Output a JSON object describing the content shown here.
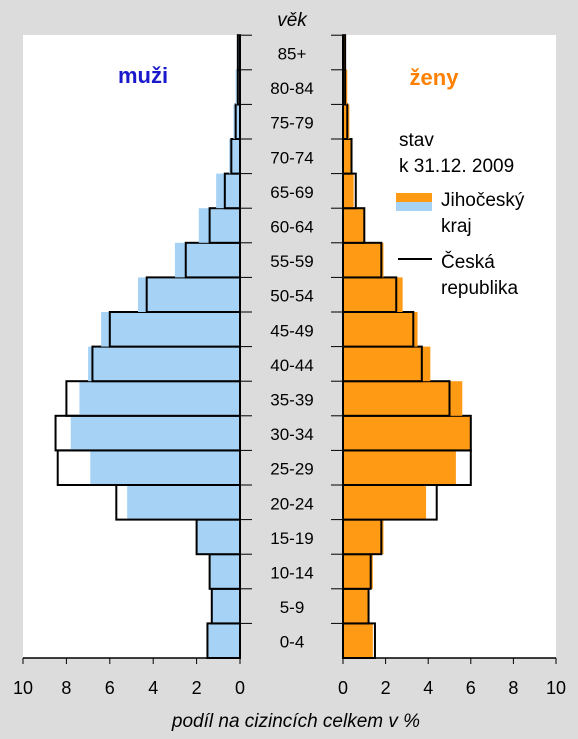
{
  "chart_data": {
    "type": "bar",
    "subtype": "population-pyramid",
    "categories_label": "věk",
    "categories": [
      "0-4",
      "5-9",
      "10-14",
      "15-19",
      "20-24",
      "25-29",
      "30-34",
      "35-39",
      "40-44",
      "45-49",
      "50-54",
      "55-59",
      "60-64",
      "65-69",
      "70-74",
      "75-79",
      "80-84",
      "85+"
    ],
    "left_panel_label": "muži",
    "right_panel_label": "ženy",
    "xlabel": "podíl na cizincích celkem v %",
    "xlim": [
      0,
      10
    ],
    "x_ticks": [
      "10",
      "8",
      "6",
      "4",
      "2",
      "0",
      "0",
      "2",
      "4",
      "6",
      "8",
      "10"
    ],
    "legend": {
      "title_line1": "stav",
      "title_line2": "k 31.12. 2009",
      "region_line1": "Jihočeský",
      "region_line2": "kraj",
      "country_line1": "Česká",
      "country_line2": "republika"
    },
    "series": [
      {
        "name": "Jihočeský kraj (muži)",
        "side": "left",
        "values": [
          1.5,
          1.3,
          1.4,
          2.0,
          5.2,
          6.9,
          7.8,
          7.4,
          7.0,
          6.4,
          4.7,
          3.0,
          1.9,
          1.1,
          0.5,
          0.3,
          0.2,
          0.1
        ]
      },
      {
        "name": "Česká republika (muži)",
        "side": "left",
        "values": [
          1.5,
          1.3,
          1.4,
          2.0,
          5.7,
          8.4,
          8.5,
          8.0,
          6.8,
          6.0,
          4.3,
          2.5,
          1.4,
          0.7,
          0.4,
          0.2,
          0.1,
          0.1
        ]
      },
      {
        "name": "Jihočeský kraj (ženy)",
        "side": "right",
        "values": [
          1.4,
          1.2,
          1.4,
          1.9,
          3.9,
          5.3,
          6.0,
          5.6,
          4.1,
          3.5,
          2.8,
          1.9,
          1.0,
          0.5,
          0.4,
          0.3,
          0.2,
          0.1
        ]
      },
      {
        "name": "Česká republika (ženy)",
        "side": "right",
        "values": [
          1.5,
          1.2,
          1.3,
          1.8,
          4.4,
          6.0,
          6.0,
          5.0,
          3.7,
          3.3,
          2.5,
          1.8,
          1.0,
          0.6,
          0.4,
          0.2,
          0.1,
          0.1
        ]
      }
    ],
    "colors": {
      "male_fill": "#a6d2f5",
      "female_fill": "#ff9a14",
      "outline": "#000000",
      "male_label": "#1a1acc",
      "female_label": "#ff8000",
      "panel_bg": "#ffffff",
      "page_bg": "#dcdcdc"
    }
  }
}
